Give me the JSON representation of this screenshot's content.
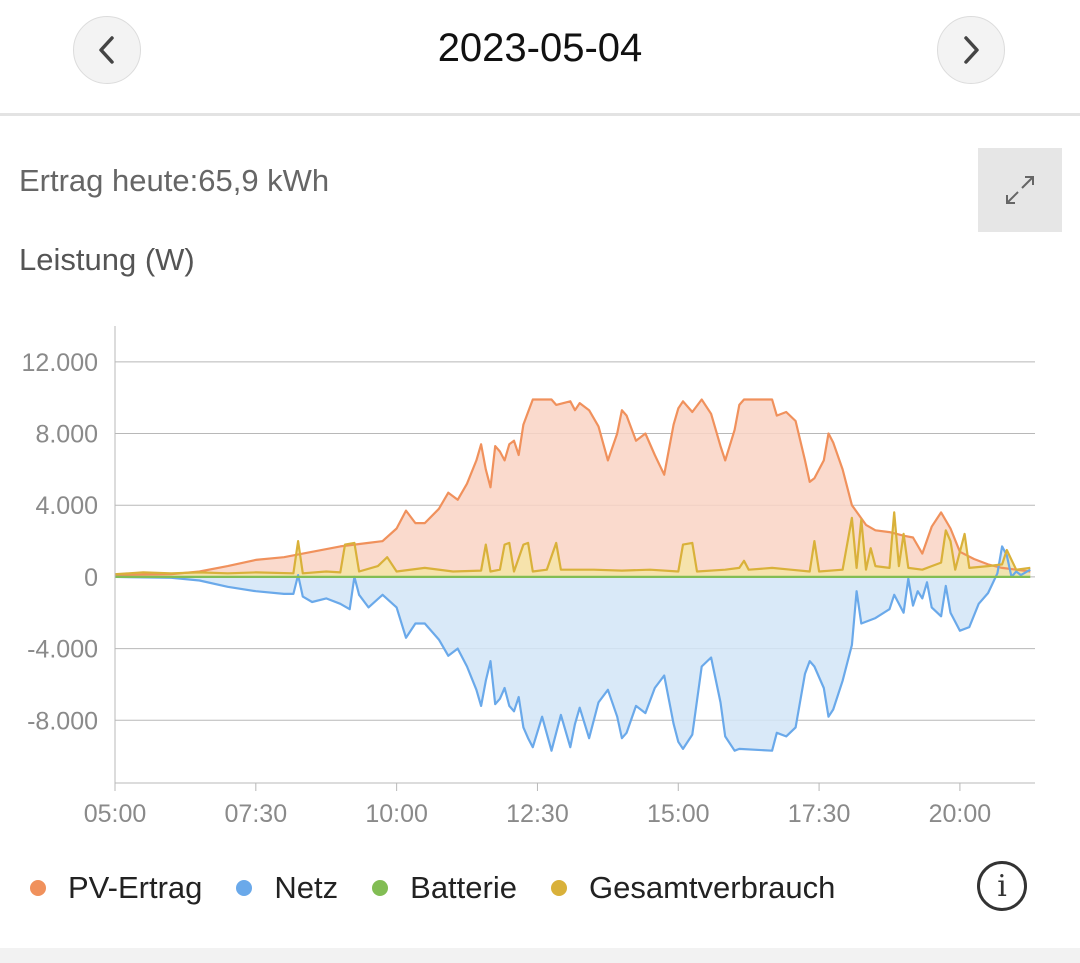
{
  "header": {
    "date": "2023-05-04",
    "prev_icon": "chevron-left-icon",
    "next_icon": "chevron-right-icon"
  },
  "summary": {
    "yield_text": "Ertrag heute:65,9 kWh"
  },
  "chart_header": {
    "unit_label": "Leistung (W)",
    "expand_icon": "expand-icon"
  },
  "info_icon": "info-icon",
  "info_glyph": "i",
  "chart_data": {
    "type": "area",
    "xlabel": "",
    "ylabel": "Leistung (W)",
    "x_ticks": [
      "05:00",
      "07:30",
      "10:00",
      "12:30",
      "15:00",
      "17:30",
      "20:00"
    ],
    "y_ticks": [
      {
        "value": 12000,
        "label": "12.000"
      },
      {
        "value": 8000,
        "label": "8.000"
      },
      {
        "value": 4000,
        "label": "4.000"
      },
      {
        "value": 0,
        "label": "0"
      },
      {
        "value": -4000,
        "label": "-4.000"
      },
      {
        "value": -8000,
        "label": "-8.000"
      }
    ],
    "x_range": [
      "05:00",
      "21:20"
    ],
    "ylim": [
      -11500,
      14000
    ],
    "grid": true,
    "legend_position": "bottom",
    "series": [
      {
        "name": "PV-Ertrag",
        "color": "#f0915c",
        "fill": "#f9d4c4",
        "points": [
          [
            "05:00",
            100
          ],
          [
            "06:00",
            150
          ],
          [
            "06:30",
            300
          ],
          [
            "07:00",
            600
          ],
          [
            "07:30",
            950
          ],
          [
            "08:00",
            1100
          ],
          [
            "08:30",
            1400
          ],
          [
            "09:00",
            1700
          ],
          [
            "09:30",
            1900
          ],
          [
            "09:45",
            2000
          ],
          [
            "10:00",
            2700
          ],
          [
            "10:10",
            3700
          ],
          [
            "10:20",
            3000
          ],
          [
            "10:30",
            3000
          ],
          [
            "10:45",
            3800
          ],
          [
            "10:55",
            4700
          ],
          [
            "11:05",
            4300
          ],
          [
            "11:15",
            5200
          ],
          [
            "11:25",
            6500
          ],
          [
            "11:30",
            7400
          ],
          [
            "11:35",
            6000
          ],
          [
            "11:40",
            5000
          ],
          [
            "11:45",
            7300
          ],
          [
            "11:50",
            7000
          ],
          [
            "11:55",
            6500
          ],
          [
            "12:00",
            7400
          ],
          [
            "12:05",
            7600
          ],
          [
            "12:10",
            6800
          ],
          [
            "12:15",
            8500
          ],
          [
            "12:20",
            9200
          ],
          [
            "12:25",
            9900
          ],
          [
            "12:45",
            9900
          ],
          [
            "12:50",
            9600
          ],
          [
            "13:05",
            9800
          ],
          [
            "13:10",
            9300
          ],
          [
            "13:15",
            9700
          ],
          [
            "13:25",
            9300
          ],
          [
            "13:35",
            8400
          ],
          [
            "13:45",
            6500
          ],
          [
            "13:55",
            8000
          ],
          [
            "14:00",
            9300
          ],
          [
            "14:05",
            9000
          ],
          [
            "14:15",
            7600
          ],
          [
            "14:25",
            8000
          ],
          [
            "14:35",
            6800
          ],
          [
            "14:45",
            5700
          ],
          [
            "14:55",
            8500
          ],
          [
            "15:00",
            9400
          ],
          [
            "15:05",
            9800
          ],
          [
            "15:15",
            9200
          ],
          [
            "15:25",
            9900
          ],
          [
            "15:35",
            9100
          ],
          [
            "15:45",
            7300
          ],
          [
            "15:50",
            6500
          ],
          [
            "16:00",
            8200
          ],
          [
            "16:05",
            9600
          ],
          [
            "16:10",
            9900
          ],
          [
            "16:40",
            9900
          ],
          [
            "16:45",
            9000
          ],
          [
            "16:55",
            9200
          ],
          [
            "17:05",
            8700
          ],
          [
            "17:15",
            6500
          ],
          [
            "17:20",
            5300
          ],
          [
            "17:25",
            5500
          ],
          [
            "17:35",
            6500
          ],
          [
            "17:40",
            8000
          ],
          [
            "17:45",
            7500
          ],
          [
            "17:55",
            6000
          ],
          [
            "18:05",
            4000
          ],
          [
            "18:20",
            2900
          ],
          [
            "18:30",
            2600
          ],
          [
            "18:45",
            2500
          ],
          [
            "19:00",
            2300
          ],
          [
            "19:10",
            2200
          ],
          [
            "19:20",
            1300
          ],
          [
            "19:30",
            2800
          ],
          [
            "19:40",
            3600
          ],
          [
            "19:50",
            2700
          ],
          [
            "20:00",
            1400
          ],
          [
            "20:15",
            1000
          ],
          [
            "20:30",
            700
          ],
          [
            "20:45",
            500
          ],
          [
            "21:00",
            400
          ],
          [
            "21:15",
            300
          ]
        ]
      },
      {
        "name": "Netz",
        "color": "#6aa9ea",
        "fill": "#d2e5f7",
        "points": [
          [
            "05:00",
            0
          ],
          [
            "06:00",
            -50
          ],
          [
            "06:30",
            -200
          ],
          [
            "07:00",
            -550
          ],
          [
            "07:30",
            -800
          ],
          [
            "08:00",
            -950
          ],
          [
            "08:10",
            -950
          ],
          [
            "08:15",
            100
          ],
          [
            "08:20",
            -1100
          ],
          [
            "08:30",
            -1400
          ],
          [
            "08:45",
            -1200
          ],
          [
            "09:00",
            -1500
          ],
          [
            "09:10",
            -1800
          ],
          [
            "09:15",
            0
          ],
          [
            "09:20",
            -1000
          ],
          [
            "09:30",
            -1700
          ],
          [
            "09:45",
            -1000
          ],
          [
            "10:00",
            -1700
          ],
          [
            "10:10",
            -3400
          ],
          [
            "10:20",
            -2600
          ],
          [
            "10:30",
            -2600
          ],
          [
            "10:45",
            -3500
          ],
          [
            "10:55",
            -4400
          ],
          [
            "11:05",
            -4000
          ],
          [
            "11:15",
            -5000
          ],
          [
            "11:25",
            -6300
          ],
          [
            "11:30",
            -7200
          ],
          [
            "11:35",
            -5800
          ],
          [
            "11:40",
            -4700
          ],
          [
            "11:45",
            -7100
          ],
          [
            "11:50",
            -6800
          ],
          [
            "11:55",
            -6200
          ],
          [
            "12:00",
            -7200
          ],
          [
            "12:05",
            -7500
          ],
          [
            "12:10",
            -6700
          ],
          [
            "12:15",
            -8400
          ],
          [
            "12:20",
            -9000
          ],
          [
            "12:25",
            -9500
          ],
          [
            "12:35",
            -7800
          ],
          [
            "12:45",
            -9700
          ],
          [
            "12:55",
            -7700
          ],
          [
            "13:05",
            -9500
          ],
          [
            "13:10",
            -8200
          ],
          [
            "13:15",
            -7300
          ],
          [
            "13:25",
            -9000
          ],
          [
            "13:35",
            -7000
          ],
          [
            "13:45",
            -6300
          ],
          [
            "13:55",
            -7800
          ],
          [
            "14:00",
            -9000
          ],
          [
            "14:05",
            -8700
          ],
          [
            "14:15",
            -7200
          ],
          [
            "14:25",
            -7600
          ],
          [
            "14:35",
            -6200
          ],
          [
            "14:45",
            -5500
          ],
          [
            "14:55",
            -8200
          ],
          [
            "15:00",
            -9200
          ],
          [
            "15:05",
            -9600
          ],
          [
            "15:15",
            -8800
          ],
          [
            "15:25",
            -5000
          ],
          [
            "15:35",
            -4500
          ],
          [
            "15:45",
            -7000
          ],
          [
            "15:50",
            -8900
          ],
          [
            "16:00",
            -9700
          ],
          [
            "16:05",
            -9600
          ],
          [
            "16:40",
            -9700
          ],
          [
            "16:45",
            -8700
          ],
          [
            "16:55",
            -8900
          ],
          [
            "17:05",
            -8400
          ],
          [
            "17:15",
            -5400
          ],
          [
            "17:20",
            -4700
          ],
          [
            "17:25",
            -5000
          ],
          [
            "17:35",
            -6200
          ],
          [
            "17:40",
            -7800
          ],
          [
            "17:45",
            -7400
          ],
          [
            "17:55",
            -5800
          ],
          [
            "18:05",
            -3800
          ],
          [
            "18:10",
            -800
          ],
          [
            "18:15",
            -2600
          ],
          [
            "18:30",
            -2300
          ],
          [
            "18:45",
            -1800
          ],
          [
            "18:50",
            -1000
          ],
          [
            "19:00",
            -2000
          ],
          [
            "19:05",
            -100
          ],
          [
            "19:10",
            -1600
          ],
          [
            "19:15",
            -800
          ],
          [
            "19:20",
            -1200
          ],
          [
            "19:25",
            -300
          ],
          [
            "19:30",
            -1700
          ],
          [
            "19:40",
            -2200
          ],
          [
            "19:45",
            -500
          ],
          [
            "19:50",
            -2000
          ],
          [
            "20:00",
            -3000
          ],
          [
            "20:10",
            -2800
          ],
          [
            "20:20",
            -1500
          ],
          [
            "20:30",
            -900
          ],
          [
            "20:40",
            200
          ],
          [
            "20:45",
            1700
          ],
          [
            "20:50",
            1200
          ],
          [
            "20:55",
            0
          ],
          [
            "21:00",
            300
          ],
          [
            "21:05",
            100
          ],
          [
            "21:15",
            400
          ]
        ]
      },
      {
        "name": "Batterie",
        "color": "#82bd54",
        "fill": "none",
        "points": [
          [
            "05:00",
            0
          ],
          [
            "21:15",
            0
          ]
        ]
      },
      {
        "name": "Gesamtverbrauch",
        "color": "#d9b13a",
        "fill": "#f5e4a6",
        "points": [
          [
            "05:00",
            150
          ],
          [
            "05:30",
            250
          ],
          [
            "06:00",
            200
          ],
          [
            "06:30",
            250
          ],
          [
            "07:00",
            200
          ],
          [
            "07:30",
            250
          ],
          [
            "08:10",
            200
          ],
          [
            "08:15",
            2000
          ],
          [
            "08:20",
            200
          ],
          [
            "08:45",
            300
          ],
          [
            "09:00",
            250
          ],
          [
            "09:05",
            1800
          ],
          [
            "09:15",
            1900
          ],
          [
            "09:20",
            300
          ],
          [
            "09:40",
            600
          ],
          [
            "09:50",
            1100
          ],
          [
            "10:00",
            300
          ],
          [
            "10:30",
            500
          ],
          [
            "11:00",
            300
          ],
          [
            "11:30",
            350
          ],
          [
            "11:35",
            1800
          ],
          [
            "11:40",
            300
          ],
          [
            "11:50",
            400
          ],
          [
            "11:55",
            1800
          ],
          [
            "12:00",
            1900
          ],
          [
            "12:05",
            300
          ],
          [
            "12:15",
            1800
          ],
          [
            "12:20",
            1900
          ],
          [
            "12:25",
            300
          ],
          [
            "12:40",
            400
          ],
          [
            "12:50",
            1900
          ],
          [
            "12:55",
            400
          ],
          [
            "13:30",
            400
          ],
          [
            "14:00",
            350
          ],
          [
            "14:30",
            400
          ],
          [
            "15:00",
            300
          ],
          [
            "15:05",
            1800
          ],
          [
            "15:15",
            1900
          ],
          [
            "15:20",
            300
          ],
          [
            "15:50",
            400
          ],
          [
            "16:05",
            500
          ],
          [
            "16:10",
            900
          ],
          [
            "16:15",
            400
          ],
          [
            "16:40",
            500
          ],
          [
            "17:00",
            400
          ],
          [
            "17:20",
            300
          ],
          [
            "17:25",
            2000
          ],
          [
            "17:30",
            300
          ],
          [
            "17:55",
            400
          ],
          [
            "18:05",
            3300
          ],
          [
            "18:10",
            500
          ],
          [
            "18:15",
            3200
          ],
          [
            "18:20",
            400
          ],
          [
            "18:25",
            1600
          ],
          [
            "18:30",
            600
          ],
          [
            "18:45",
            500
          ],
          [
            "18:50",
            3600
          ],
          [
            "18:55",
            600
          ],
          [
            "19:00",
            2400
          ],
          [
            "19:05",
            500
          ],
          [
            "19:20",
            400
          ],
          [
            "19:30",
            600
          ],
          [
            "19:40",
            800
          ],
          [
            "19:45",
            2600
          ],
          [
            "19:50",
            2000
          ],
          [
            "19:55",
            400
          ],
          [
            "20:05",
            2400
          ],
          [
            "20:10",
            500
          ],
          [
            "20:30",
            600
          ],
          [
            "20:45",
            700
          ],
          [
            "20:50",
            1500
          ],
          [
            "21:00",
            400
          ],
          [
            "21:15",
            500
          ]
        ]
      }
    ]
  },
  "legend": [
    {
      "label": "PV-Ertrag",
      "color": "#f0915c"
    },
    {
      "label": "Netz",
      "color": "#6aa9ea"
    },
    {
      "label": "Batterie",
      "color": "#82bd54"
    },
    {
      "label": "Gesamtverbrauch",
      "color": "#d9b13a"
    }
  ]
}
